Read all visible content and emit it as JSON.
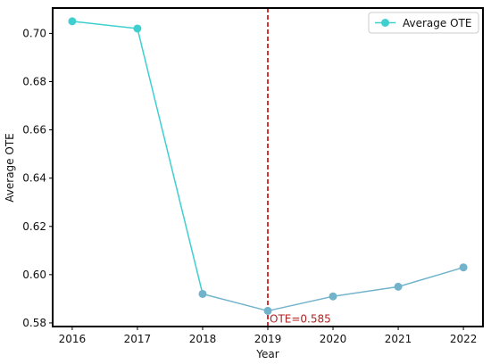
{
  "chart_data": {
    "type": "line",
    "title": "",
    "xlabel": "Year",
    "ylabel": "Average OTE",
    "x": [
      2016,
      2017,
      2018,
      2019,
      2020,
      2021,
      2022
    ],
    "series": [
      {
        "name": "Average OTE",
        "values": [
          0.705,
          0.702,
          0.592,
          0.585,
          0.591,
          0.595,
          0.603
        ],
        "color_early": "#3fcfcf",
        "color_late": "#72b3cc"
      }
    ],
    "xlim": [
      2015.7,
      2022.3
    ],
    "ylim": [
      0.5785,
      0.7105
    ],
    "yticks": [
      "0.58",
      "0.60",
      "0.62",
      "0.64",
      "0.66",
      "0.68",
      "0.70"
    ],
    "xticks": [
      "2016",
      "2017",
      "2018",
      "2019",
      "2020",
      "2021",
      "2022"
    ],
    "grid": false,
    "legend_position": "top-right",
    "reference_line": {
      "x": 2019,
      "color": "#cc0000",
      "style": "dashed"
    },
    "annotation": {
      "text": "OTE=0.585",
      "x": 2019,
      "y": 0.585,
      "color": "#b22222"
    }
  }
}
